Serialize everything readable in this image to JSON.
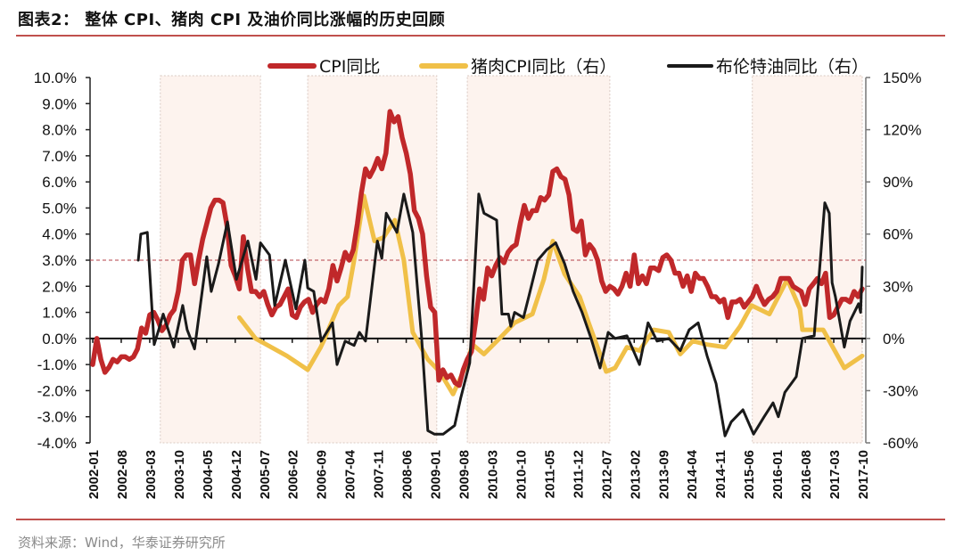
{
  "title": "图表2：  整体 CPI、猪肉 CPI 及油价同比涨幅的历史回顾",
  "source": "资料来源：Wind，华泰证券研究所",
  "colors": {
    "cpi": "#c0282a",
    "pork": "#f0c048",
    "brent": "#1a1a1a",
    "accent": "#c0504d",
    "shade": "#fdf3ee"
  },
  "chart_data": {
    "type": "line",
    "x_start": "2002-01",
    "x_unit": "month index from 2002-01",
    "x_tick_labels": [
      "2002-01",
      "2002-08",
      "2003-03",
      "2003-10",
      "2004-05",
      "2004-12",
      "2005-07",
      "2006-02",
      "2006-09",
      "2007-04",
      "2007-11",
      "2008-06",
      "2009-01",
      "2009-08",
      "2010-03",
      "2010-10",
      "2011-05",
      "2011-12",
      "2012-07",
      "2013-02",
      "2013-09",
      "2014-04",
      "2014-11",
      "2015-06",
      "2016-01",
      "2016-08",
      "2017-03",
      "2017-10"
    ],
    "y_left": {
      "min": -4,
      "max": 10,
      "step": 1,
      "tick_labels": [
        "-4.0%",
        "-3.0%",
        "-2.0%",
        "-1.0%",
        "0.0%",
        "1.0%",
        "2.0%",
        "3.0%",
        "4.0%",
        "5.0%",
        "6.0%",
        "7.0%",
        "8.0%",
        "9.0%",
        "10.0%"
      ]
    },
    "y_right": {
      "min": -60,
      "max": 150,
      "step": 30,
      "tick_labels": [
        "-60%",
        "-30%",
        "0%",
        "30%",
        "60%",
        "90%",
        "120%",
        "150%"
      ]
    },
    "reference_line_left": 3.0,
    "shaded_ranges_month_index": [
      [
        16.6,
        41.2
      ],
      [
        52.8,
        84.5
      ],
      [
        92,
        127
      ],
      [
        162,
        189
      ]
    ],
    "legend_position": "top",
    "series": [
      {
        "name": "CPI同比",
        "axis": "left",
        "color_key": "cpi",
        "monthly_values": [
          -1.0,
          0.0,
          -0.8,
          -1.3,
          -1.1,
          -0.8,
          -0.9,
          -0.7,
          -0.7,
          -0.8,
          -0.7,
          -0.4,
          0.4,
          0.2,
          0.9,
          1.0,
          0.7,
          0.3,
          0.5,
          0.9,
          1.1,
          1.8,
          3.0,
          3.2,
          3.2,
          2.1,
          3.0,
          3.8,
          4.4,
          5.0,
          5.3,
          5.3,
          5.2,
          4.3,
          2.8,
          2.4,
          1.9,
          3.9,
          2.7,
          1.8,
          1.8,
          1.6,
          1.8,
          1.3,
          0.9,
          1.2,
          1.3,
          1.6,
          1.9,
          0.9,
          0.8,
          1.2,
          1.4,
          1.5,
          1.0,
          1.3,
          1.5,
          1.4,
          1.9,
          2.8,
          2.2,
          2.7,
          3.3,
          3.0,
          3.4,
          4.4,
          5.6,
          6.5,
          6.2,
          6.5,
          6.9,
          6.5,
          7.1,
          8.7,
          8.3,
          8.5,
          7.7,
          7.1,
          6.3,
          4.9,
          4.6,
          4.0,
          2.4,
          1.2,
          1.0,
          -1.6,
          -1.2,
          -1.5,
          -1.4,
          -1.7,
          -1.8,
          -1.2,
          -0.8,
          -0.5,
          0.6,
          1.9,
          1.5,
          2.7,
          2.4,
          2.8,
          3.1,
          2.9,
          3.3,
          3.5,
          3.6,
          4.4,
          5.1,
          4.6,
          4.9,
          4.9,
          5.4,
          5.3,
          5.5,
          6.4,
          6.5,
          6.2,
          6.1,
          5.5,
          4.2,
          4.1,
          4.5,
          3.2,
          3.6,
          3.4,
          3.0,
          2.2,
          1.8,
          2.0,
          1.9,
          1.7,
          2.0,
          2.5,
          2.0,
          3.2,
          2.1,
          2.4,
          2.1,
          2.7,
          2.7,
          2.6,
          3.1,
          3.2,
          3.0,
          2.5,
          2.5,
          2.0,
          2.4,
          1.8,
          2.5,
          2.3,
          2.3,
          2.0,
          1.6,
          1.6,
          1.4,
          1.5,
          0.8,
          1.4,
          1.4,
          1.5,
          1.2,
          1.4,
          1.6,
          2.0,
          1.6,
          1.3,
          1.5,
          1.6,
          1.8,
          2.3,
          2.3,
          2.3,
          2.0,
          1.9,
          1.8,
          1.3,
          1.9,
          2.1,
          2.3,
          2.1,
          2.5,
          0.8,
          0.9,
          1.2,
          1.5,
          1.5,
          1.4,
          1.8,
          1.6,
          1.9
        ]
      },
      {
        "name": "猪肉CPI同比（右）",
        "axis": "right",
        "color_key": "pork",
        "points": [
          [
            36,
            12
          ],
          [
            40,
            0
          ],
          [
            47.7,
            -10
          ],
          [
            52.8,
            -18
          ],
          [
            56,
            -5
          ],
          [
            56.7,
            -1.5
          ],
          [
            60.4,
            19
          ],
          [
            62.6,
            24
          ],
          [
            64.2,
            45
          ],
          [
            66.6,
            82
          ],
          [
            69.2,
            56
          ],
          [
            71.4,
            58
          ],
          [
            74.2,
            68
          ],
          [
            76.4,
            45
          ],
          [
            78.6,
            3.5
          ],
          [
            82.3,
            -12
          ],
          [
            85.2,
            -19
          ],
          [
            88.5,
            -32
          ],
          [
            91.8,
            -15
          ],
          [
            93.3,
            -3.5
          ],
          [
            96.1,
            -9
          ],
          [
            99.9,
            0
          ],
          [
            103.6,
            9
          ],
          [
            108,
            14
          ],
          [
            110.8,
            34
          ],
          [
            113,
            56
          ],
          [
            115.9,
            37
          ],
          [
            119.6,
            24
          ],
          [
            121.8,
            9
          ],
          [
            124.6,
            -9
          ],
          [
            126.1,
            -19
          ],
          [
            128.3,
            -17
          ],
          [
            131.2,
            -5
          ],
          [
            134.3,
            -7
          ],
          [
            137.8,
            5
          ],
          [
            141.5,
            3.5
          ],
          [
            144.3,
            -9
          ],
          [
            147.4,
            -1.5
          ],
          [
            150.9,
            -3.5
          ],
          [
            155.3,
            -5
          ],
          [
            159,
            7
          ],
          [
            161.8,
            19
          ],
          [
            166.2,
            14
          ],
          [
            170.6,
            34
          ],
          [
            173.7,
            17
          ],
          [
            174.3,
            5
          ],
          [
            179.4,
            5
          ],
          [
            184.6,
            -17
          ],
          [
            189,
            -10
          ]
        ]
      },
      {
        "name": "布伦特油同比（右）",
        "axis": "right",
        "color_key": "brent",
        "points": [
          [
            11.2,
            45
          ],
          [
            11.8,
            60
          ],
          [
            13.4,
            61
          ],
          [
            15.1,
            -3.5
          ],
          [
            16.2,
            5
          ],
          [
            17.3,
            14
          ],
          [
            19.9,
            -5
          ],
          [
            22.1,
            19
          ],
          [
            23.2,
            5
          ],
          [
            25,
            -6
          ],
          [
            28,
            47
          ],
          [
            29.1,
            27
          ],
          [
            30.9,
            43
          ],
          [
            33.1,
            67
          ],
          [
            35.3,
            34
          ],
          [
            38.1,
            56
          ],
          [
            40.1,
            34
          ],
          [
            41.2,
            55
          ],
          [
            43.4,
            48
          ],
          [
            44.7,
            19
          ],
          [
            47.3,
            45
          ],
          [
            49.9,
            17
          ],
          [
            52.1,
            45
          ],
          [
            52.8,
            29
          ],
          [
            54.3,
            27
          ],
          [
            56.1,
            -1.5
          ],
          [
            58.9,
            9
          ],
          [
            60,
            -15
          ],
          [
            62,
            -1.5
          ],
          [
            64.2,
            -4
          ],
          [
            65.5,
            3.5
          ],
          [
            67,
            -1.5
          ],
          [
            69.9,
            56
          ],
          [
            71,
            46
          ],
          [
            72.1,
            72
          ],
          [
            74.7,
            61
          ],
          [
            76.4,
            83
          ],
          [
            78.6,
            61
          ],
          [
            80.8,
            0
          ],
          [
            82.3,
            -53
          ],
          [
            83.9,
            -55
          ],
          [
            86.1,
            -55
          ],
          [
            88.9,
            -50
          ],
          [
            90.4,
            -34
          ],
          [
            92.6,
            -14
          ],
          [
            93.7,
            34
          ],
          [
            94.8,
            83
          ],
          [
            96.1,
            72
          ],
          [
            99.2,
            68
          ],
          [
            100.5,
            14
          ],
          [
            102.1,
            14
          ],
          [
            102.7,
            7
          ],
          [
            103.6,
            15
          ],
          [
            105.8,
            12
          ],
          [
            107.1,
            24
          ],
          [
            109.3,
            45
          ],
          [
            111.5,
            51
          ],
          [
            113.7,
            55
          ],
          [
            115.9,
            43
          ],
          [
            118,
            27
          ],
          [
            120.2,
            15
          ],
          [
            122.4,
            0
          ],
          [
            124.6,
            -17
          ],
          [
            126.6,
            3.5
          ],
          [
            128.3,
            0
          ],
          [
            131.2,
            1.5
          ],
          [
            134.3,
            -15
          ],
          [
            136.4,
            9
          ],
          [
            138.6,
            -1.5
          ],
          [
            141.5,
            0
          ],
          [
            144.3,
            -7
          ],
          [
            146.5,
            5
          ],
          [
            148.7,
            9
          ],
          [
            150.9,
            -10
          ],
          [
            153.1,
            -26
          ],
          [
            155.3,
            -56
          ],
          [
            156.8,
            -48
          ],
          [
            159.7,
            -41
          ],
          [
            162.3,
            -55
          ],
          [
            164.9,
            -45
          ],
          [
            167.1,
            -37
          ],
          [
            168.4,
            -45
          ],
          [
            170,
            -31
          ],
          [
            172.8,
            -22
          ],
          [
            174.3,
            0
          ],
          [
            177.2,
            1.5
          ],
          [
            178.7,
            45
          ],
          [
            179.8,
            78
          ],
          [
            180.9,
            72
          ],
          [
            181.6,
            32
          ],
          [
            182.4,
            24
          ],
          [
            184.6,
            -5
          ],
          [
            186,
            10
          ],
          [
            188.1,
            20
          ],
          [
            188.6,
            15
          ],
          [
            189,
            41
          ]
        ]
      }
    ]
  }
}
